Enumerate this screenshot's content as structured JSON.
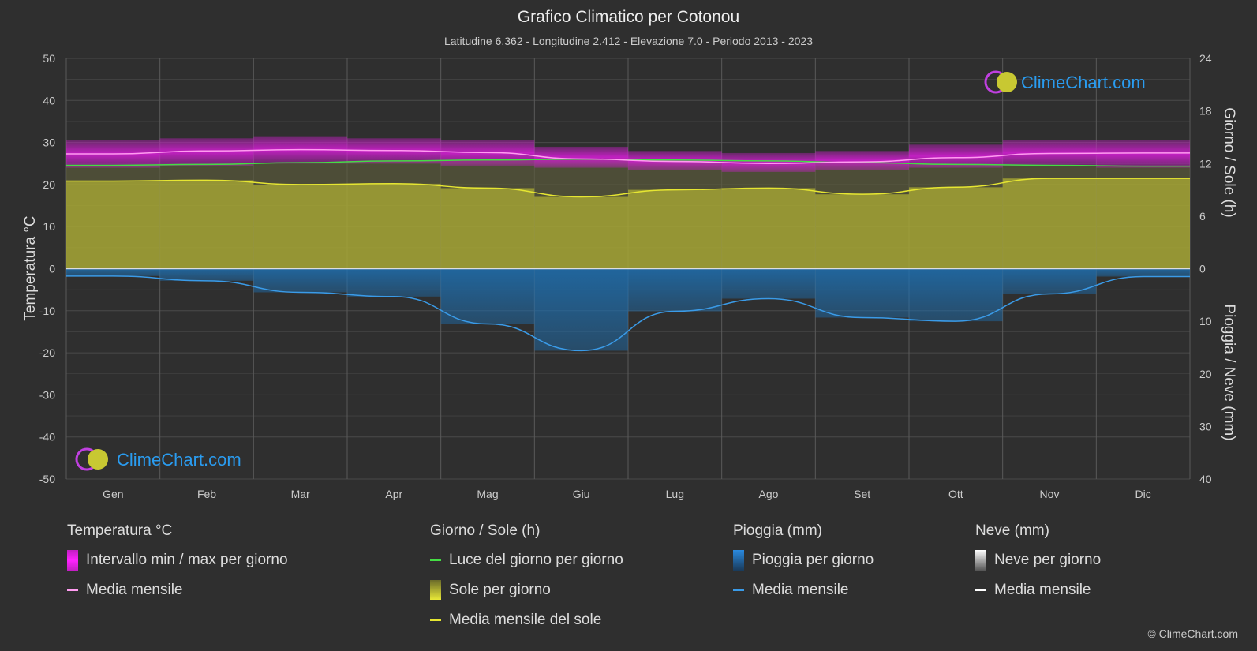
{
  "title": "Grafico Climatico per Cotonou",
  "subtitle": "Latitudine 6.362 - Longitudine 2.412 - Elevazione 7.0 - Periodo 2013 - 2023",
  "logo_text": "ClimeChart.com",
  "copyright": "© ClimeChart.com",
  "colors": {
    "background": "#2f2f2f",
    "temp_range": "#d21ed2",
    "temp_mean": "#ff9cf0",
    "daylight": "#44dd44",
    "sun_fill": "#a7a735",
    "sun_mean": "#e6e632",
    "rain_fill": "#1e6fb0",
    "rain_mean": "#3a9be8",
    "snow_mean": "#ffffff",
    "logo_blue": "#2a9cf0"
  },
  "legend": {
    "temperature": {
      "header": "Temperatura °C",
      "range_label": "Intervallo min / max per giorno",
      "mean_label": "Media mensile"
    },
    "sun": {
      "header": "Giorno / Sole (h)",
      "daylight_label": "Luce del giorno per giorno",
      "sun_label": "Sole per giorno",
      "mean_label": "Media mensile del sole"
    },
    "rain": {
      "header": "Pioggia (mm)",
      "rain_label": "Pioggia per giorno",
      "mean_label": "Media mensile"
    },
    "snow": {
      "header": "Neve (mm)",
      "snow_label": "Neve per giorno",
      "mean_label": "Media mensile"
    }
  },
  "chart_data": {
    "type": "line",
    "categories": [
      "Gen",
      "Feb",
      "Mar",
      "Apr",
      "Mag",
      "Giu",
      "Lug",
      "Ago",
      "Set",
      "Ott",
      "Nov",
      "Dic"
    ],
    "y_left": {
      "label": "Temperatura °C",
      "range": [
        -50,
        50
      ],
      "ticks": [
        50,
        40,
        30,
        20,
        10,
        0,
        -10,
        -20,
        -30,
        -40,
        -50
      ]
    },
    "y_right_top": {
      "label": "Giorno / Sole (h)",
      "range": [
        0,
        24
      ],
      "ticks": [
        24,
        18,
        12,
        6,
        0
      ]
    },
    "y_right_bottom": {
      "label": "Pioggia / Neve (mm)",
      "range": [
        0,
        40
      ],
      "ticks": [
        0,
        10,
        20,
        30,
        40
      ]
    },
    "grid": true,
    "series": [
      {
        "name": "Intervallo min / max per giorno",
        "kind": "band",
        "axis": "temperature",
        "min": [
          24.0,
          24.5,
          25.0,
          25.0,
          24.5,
          24.0,
          23.5,
          23.0,
          23.5,
          24.0,
          24.5,
          24.0
        ],
        "max": [
          30.5,
          31.0,
          31.5,
          31.0,
          30.5,
          29.0,
          28.0,
          27.5,
          28.0,
          29.5,
          30.5,
          30.5
        ]
      },
      {
        "name": "Media mensile",
        "kind": "line",
        "axis": "temperature",
        "values": [
          27.3,
          28.0,
          28.3,
          28.1,
          27.6,
          26.1,
          25.5,
          25.0,
          25.4,
          26.4,
          27.4,
          27.5
        ]
      },
      {
        "name": "Luce del giorno per giorno",
        "kind": "line",
        "axis": "sun",
        "values": [
          11.8,
          11.9,
          12.1,
          12.3,
          12.4,
          12.5,
          12.4,
          12.3,
          12.1,
          11.9,
          11.8,
          11.7
        ]
      },
      {
        "name": "Sole per giorno",
        "kind": "bars",
        "axis": "sun",
        "values": [
          10.0,
          10.1,
          9.6,
          9.7,
          9.2,
          8.2,
          9.0,
          9.2,
          8.5,
          9.3,
          10.3,
          10.3
        ]
      },
      {
        "name": "Media mensile del sole",
        "kind": "line",
        "axis": "sun",
        "values": [
          10.0,
          10.1,
          9.6,
          9.7,
          9.2,
          8.2,
          9.0,
          9.2,
          8.5,
          9.3,
          10.3,
          10.3
        ]
      },
      {
        "name": "Pioggia per giorno",
        "kind": "bars",
        "axis": "rain",
        "values": [
          1.4,
          2.3,
          4.5,
          5.3,
          10.5,
          15.6,
          8.1,
          5.7,
          9.3,
          10.0,
          4.8,
          1.5
        ]
      },
      {
        "name": "Media mensile",
        "kind": "line",
        "axis": "rain",
        "values": [
          1.4,
          2.3,
          4.5,
          5.3,
          10.5,
          15.6,
          8.1,
          5.7,
          9.3,
          10.0,
          4.8,
          1.5
        ]
      }
    ]
  }
}
